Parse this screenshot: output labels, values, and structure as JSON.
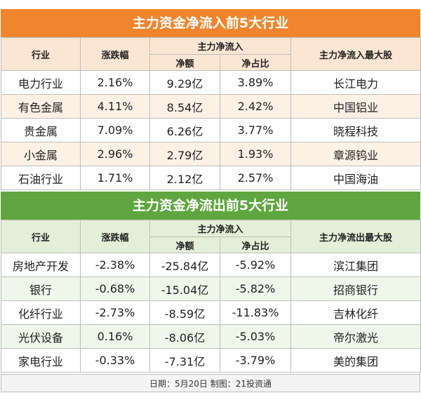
{
  "inflow": {
    "title": "主力资金净流入前5大行业",
    "headers": {
      "industry": "行业",
      "change": "涨跌幅",
      "main_group": "主力净流入",
      "net": "净额",
      "ratio": "净占比",
      "top_stock": "主力净流入最大股"
    },
    "rows": [
      {
        "industry": "电力行业",
        "change": "2.16%",
        "net": "9.29亿",
        "ratio": "3.89%",
        "stock": "长江电力"
      },
      {
        "industry": "有色金属",
        "change": "4.11%",
        "net": "8.54亿",
        "ratio": "2.42%",
        "stock": "中国铝业"
      },
      {
        "industry": "贵金属",
        "change": "7.09%",
        "net": "6.26亿",
        "ratio": "3.77%",
        "stock": "晓程科技"
      },
      {
        "industry": "小金属",
        "change": "2.96%",
        "net": "2.79亿",
        "ratio": "1.93%",
        "stock": "章源钨业"
      },
      {
        "industry": "石油行业",
        "change": "1.71%",
        "net": "2.12亿",
        "ratio": "2.57%",
        "stock": "中国海油"
      }
    ]
  },
  "outflow": {
    "title": "主力资金净流出前5大行业",
    "headers": {
      "industry": "行业",
      "change": "涨跌幅",
      "main_group": "主力净流入",
      "net": "净额",
      "ratio": "净占比",
      "top_stock": "主力净流出最大股"
    },
    "rows": [
      {
        "industry": "房地产开发",
        "change": "-2.38%",
        "net": "-25.84亿",
        "ratio": "-5.92%",
        "stock": "滨江集团"
      },
      {
        "industry": "银行",
        "change": "-0.68%",
        "net": "-15.04亿",
        "ratio": "-5.82%",
        "stock": "招商银行"
      },
      {
        "industry": "化纤行业",
        "change": "-2.73%",
        "net": "-8.59亿",
        "ratio": "-11.83%",
        "stock": "吉林化纤"
      },
      {
        "industry": "光伏设备",
        "change": "0.16%",
        "net": "-8.06亿",
        "ratio": "-5.03%",
        "stock": "帝尔激光"
      },
      {
        "industry": "家电行业",
        "change": "-0.33%",
        "net": "-7.31亿",
        "ratio": "-3.79%",
        "stock": "美的集团"
      }
    ]
  },
  "footer": "日期：5月20日 制图：21投资通"
}
